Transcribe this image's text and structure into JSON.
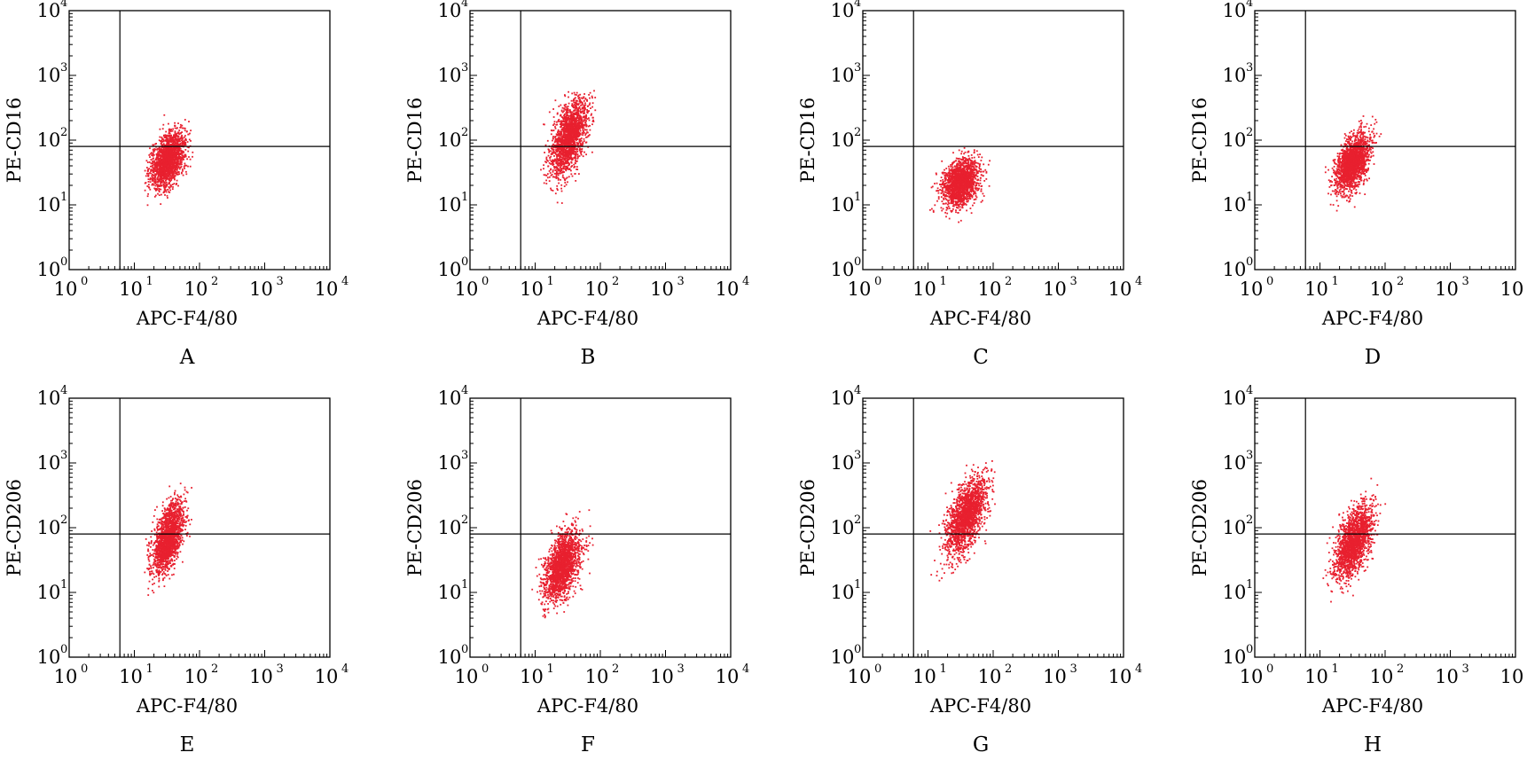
{
  "figure": {
    "dot_color": "#e8202f",
    "gate_x": 6,
    "gate_y": 80
  },
  "chart_data": [
    {
      "type": "scatter",
      "panel": "A",
      "xlabel": "APC-F4/80",
      "ylabel": "PE-CD16",
      "x_scale": "log",
      "y_scale": "log",
      "xlim": [
        1,
        10000
      ],
      "ylim": [
        1,
        10000
      ],
      "x_ticks": [
        1,
        10,
        100,
        1000,
        10000
      ],
      "y_ticks": [
        1,
        10,
        100,
        1000,
        10000
      ],
      "gates": {
        "x": 6,
        "y": 80
      },
      "cluster": {
        "center_x": 33,
        "center_y": 50,
        "spread_x_log": 0.13,
        "spread_y_log": 0.22,
        "correlation": 0.45,
        "n_points": 1800,
        "x_range": [
          14,
          80
        ],
        "y_range": [
          8,
          500
        ]
      }
    },
    {
      "type": "scatter",
      "panel": "B",
      "xlabel": "APC-F4/80",
      "ylabel": "PE-CD16",
      "x_scale": "log",
      "y_scale": "log",
      "xlim": [
        1,
        10000
      ],
      "ylim": [
        1,
        10000
      ],
      "x_ticks": [
        1,
        10,
        100,
        1000,
        10000
      ],
      "y_ticks": [
        1,
        10,
        100,
        1000,
        10000
      ],
      "gates": {
        "x": 6,
        "y": 80
      },
      "cluster": {
        "center_x": 33,
        "center_y": 110,
        "spread_x_log": 0.14,
        "spread_y_log": 0.3,
        "correlation": 0.55,
        "n_points": 1800,
        "x_range": [
          12,
          90
        ],
        "y_range": [
          7,
          600
        ]
      }
    },
    {
      "type": "scatter",
      "panel": "C",
      "xlabel": "APC-F4/80",
      "ylabel": "PE-CD16",
      "x_scale": "log",
      "y_scale": "log",
      "xlim": [
        1,
        10000
      ],
      "ylim": [
        1,
        10000
      ],
      "x_ticks": [
        1,
        10,
        100,
        1000,
        10000
      ],
      "y_ticks": [
        1,
        10,
        100,
        1000,
        10000
      ],
      "gates": {
        "x": 6,
        "y": 80
      },
      "cluster": {
        "center_x": 32,
        "center_y": 22,
        "spread_x_log": 0.14,
        "spread_y_log": 0.18,
        "correlation": 0.3,
        "n_points": 1800,
        "x_range": [
          10,
          90
        ],
        "y_range": [
          5,
          140
        ]
      }
    },
    {
      "type": "scatter",
      "panel": "D",
      "xlabel": "APC-F4/80",
      "ylabel": "PE-CD16",
      "x_scale": "log",
      "y_scale": "log",
      "xlim": [
        1,
        10000
      ],
      "ylim": [
        1,
        10000
      ],
      "x_ticks": [
        1,
        10,
        100,
        1000,
        10000
      ],
      "y_ticks": [
        1,
        10,
        100,
        1000,
        10000
      ],
      "gates": {
        "x": 6,
        "y": 80
      },
      "cluster": {
        "center_x": 32,
        "center_y": 45,
        "spread_x_log": 0.13,
        "spread_y_log": 0.22,
        "correlation": 0.45,
        "n_points": 1800,
        "x_range": [
          12,
          120
        ],
        "y_range": [
          8,
          300
        ]
      }
    },
    {
      "type": "scatter",
      "panel": "E",
      "xlabel": "APC-F4/80",
      "ylabel": "PE-CD206",
      "x_scale": "log",
      "y_scale": "log",
      "xlim": [
        1,
        10000
      ],
      "ylim": [
        1,
        10000
      ],
      "x_ticks": [
        1,
        10,
        100,
        1000,
        10000
      ],
      "y_ticks": [
        1,
        10,
        100,
        1000,
        10000
      ],
      "gates": {
        "x": 6,
        "y": 80
      },
      "cluster": {
        "center_x": 33,
        "center_y": 70,
        "spread_x_log": 0.12,
        "spread_y_log": 0.27,
        "correlation": 0.55,
        "n_points": 1800,
        "x_range": [
          14,
          100
        ],
        "y_range": [
          8,
          1200
        ]
      }
    },
    {
      "type": "scatter",
      "panel": "F",
      "xlabel": "APC-F4/80",
      "ylabel": "PE-CD206",
      "x_scale": "log",
      "y_scale": "log",
      "xlim": [
        1,
        10000
      ],
      "ylim": [
        1,
        10000
      ],
      "x_ticks": [
        1,
        10,
        100,
        1000,
        10000
      ],
      "y_ticks": [
        1,
        10,
        100,
        1000,
        10000
      ],
      "gates": {
        "x": 6,
        "y": 80
      },
      "cluster": {
        "center_x": 26,
        "center_y": 25,
        "spread_x_log": 0.14,
        "spread_y_log": 0.27,
        "correlation": 0.5,
        "n_points": 1800,
        "x_range": [
          9,
          90
        ],
        "y_range": [
          4,
          350
        ]
      }
    },
    {
      "type": "scatter",
      "panel": "G",
      "xlabel": "APC-F4/80",
      "ylabel": "PE-CD206",
      "x_scale": "log",
      "y_scale": "log",
      "xlim": [
        1,
        10000
      ],
      "ylim": [
        1,
        10000
      ],
      "x_ticks": [
        1,
        10,
        100,
        1000,
        10000
      ],
      "y_ticks": [
        1,
        10,
        100,
        1000,
        10000
      ],
      "gates": {
        "x": 6,
        "y": 80
      },
      "cluster": {
        "center_x": 38,
        "center_y": 150,
        "spread_x_log": 0.16,
        "spread_y_log": 0.3,
        "correlation": 0.55,
        "n_points": 1800,
        "x_range": [
          10,
          110
        ],
        "y_range": [
          6,
          1100
        ]
      }
    },
    {
      "type": "scatter",
      "panel": "H",
      "xlabel": "APC-F4/80",
      "ylabel": "PE-CD206",
      "x_scale": "log",
      "y_scale": "log",
      "xlim": [
        1,
        10000
      ],
      "ylim": [
        1,
        10000
      ],
      "x_ticks": [
        1,
        10,
        100,
        1000,
        10000
      ],
      "y_ticks": [
        1,
        10,
        100,
        1000,
        10000
      ],
      "gates": {
        "x": 6,
        "y": 80
      },
      "cluster": {
        "center_x": 33,
        "center_y": 60,
        "spread_x_log": 0.14,
        "spread_y_log": 0.28,
        "correlation": 0.55,
        "n_points": 1800,
        "x_range": [
          11,
          170
        ],
        "y_range": [
          7,
          1000
        ]
      }
    }
  ]
}
